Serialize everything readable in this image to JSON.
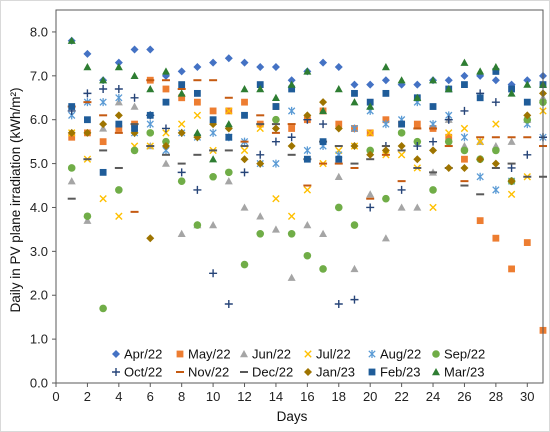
{
  "chart_data": {
    "type": "scatter",
    "xlabel": "Days",
    "ylabel": "Daily  in PV plane irradiation (kWh/m²)",
    "xlim": [
      0,
      31
    ],
    "ylim": [
      0.0,
      8.5
    ],
    "xticks": [
      0,
      2,
      4,
      6,
      8,
      10,
      12,
      14,
      16,
      18,
      20,
      22,
      24,
      26,
      28,
      30
    ],
    "yticks": [
      "0.0",
      "1.0",
      "2.0",
      "3.0",
      "4.0",
      "5.0",
      "6.0",
      "7.0",
      "8.0"
    ],
    "grid": false,
    "legend_position": "bottom-inside",
    "series": [
      {
        "name": "Apr/22",
        "color": "#4472C4",
        "marker": "diamond",
        "values": [
          7.8,
          7.5,
          6.9,
          7.3,
          7.6,
          7.6,
          7.0,
          7.1,
          7.2,
          7.3,
          7.4,
          7.3,
          7.2,
          7.2,
          6.9,
          7.1,
          7.3,
          7.2,
          6.8,
          6.8,
          6.9,
          6.8,
          6.8,
          6.9,
          6.9,
          7.0,
          7.0,
          6.9,
          6.8,
          6.9,
          7.0
        ]
      },
      {
        "name": "May/22",
        "color": "#ED7D31",
        "marker": "square",
        "values": [
          5.6,
          5.7,
          5.5,
          5.8,
          5.9,
          6.9,
          6.7,
          6.5,
          6.4,
          6.2,
          6.2,
          6.4,
          5.9,
          6.3,
          5.8,
          6.0,
          6.2,
          5.9,
          5.8,
          5.7,
          6.0,
          5.9,
          5.9,
          5.8,
          5.6,
          5.1,
          3.7,
          3.3,
          2.6,
          3.2,
          1.2
        ]
      },
      {
        "name": "Jun/22",
        "color": "#A5A5A5",
        "marker": "triangle",
        "values": [
          4.6,
          3.7,
          5.8,
          6.4,
          6.3,
          5.4,
          5.0,
          3.4,
          3.6,
          3.6,
          4.6,
          4.0,
          3.8,
          3.5,
          2.4,
          3.6,
          3.4,
          4.7,
          2.6,
          4.3,
          3.3,
          4.0,
          4.0,
          4.8,
          6.0,
          5.4,
          5.5,
          5.4,
          5.5,
          6.0,
          6.5
        ]
      },
      {
        "name": "Jul/22",
        "color": "#FFC000",
        "marker": "cross",
        "values": [
          5.7,
          5.1,
          4.2,
          3.8,
          5.4,
          5.4,
          5.7,
          5.9,
          6.1,
          5.3,
          6.2,
          5.3,
          5.8,
          4.2,
          3.8,
          4.4,
          5.0,
          5.3,
          5.4,
          5.7,
          5.2,
          5.2,
          4.9,
          4.0,
          5.7,
          5.8,
          5.5,
          5.9,
          4.3,
          4.7,
          6.2
        ]
      },
      {
        "name": "Aug/22",
        "color": "#5B9BD5",
        "marker": "asterisk",
        "values": [
          6.1,
          6.4,
          6.4,
          6.5,
          5.7,
          5.9,
          5.3,
          5.7,
          5.6,
          5.7,
          5.6,
          5.5,
          5.0,
          5.0,
          6.2,
          5.3,
          5.4,
          5.2,
          5.8,
          6.2,
          5.9,
          6.0,
          6.4,
          5.9,
          6.1,
          5.6,
          4.7,
          4.4,
          4.6,
          5.9,
          5.6
        ]
      },
      {
        "name": "Sep/22",
        "color": "#70AD47",
        "marker": "circle",
        "values": [
          4.9,
          3.8,
          1.7,
          4.4,
          5.3,
          5.7,
          5.5,
          4.6,
          3.6,
          4.7,
          4.8,
          2.7,
          3.4,
          6.0,
          3.4,
          2.9,
          2.6,
          4.0,
          3.6,
          5.3,
          4.2,
          5.7,
          5.5,
          4.4,
          5.5,
          5.3,
          5.1,
          5.3,
          4.6,
          6.0,
          6.4
        ]
      },
      {
        "name": "Oct/22",
        "color": "#264478",
        "marker": "plus",
        "values": [
          6.2,
          6.6,
          6.7,
          6.7,
          6.5,
          6.1,
          5.8,
          4.8,
          4.4,
          2.5,
          1.8,
          4.8,
          5.2,
          5.5,
          5.6,
          6.0,
          5.9,
          1.8,
          1.9,
          4.0,
          5.4,
          4.4,
          5.4,
          5.5,
          6.0,
          6.2,
          6.6,
          6.4,
          4.9,
          5.2,
          5.6
        ]
      },
      {
        "name": "Nov/22",
        "color": "#C55A11",
        "marker": "dash",
        "values": [
          6.3,
          6.4,
          6.1,
          5.7,
          3.9,
          6.9,
          6.9,
          6.7,
          6.9,
          6.9,
          6.5,
          5.5,
          6.1,
          5.7,
          5.9,
          4.5,
          5.0,
          5.0,
          4.9,
          4.2,
          5.2,
          4.6,
          5.8,
          5.8,
          5.4,
          4.6,
          5.6,
          5.6,
          5.6,
          5.6,
          5.4
        ]
      },
      {
        "name": "Dec/22",
        "color": "#595959",
        "marker": "dash",
        "values": [
          4.2,
          5.1,
          5.3,
          4.9,
          5.9,
          5.4,
          5.2,
          5.0,
          5.2,
          5.3,
          5.3,
          5.4,
          5.9,
          5.9,
          5.2,
          5.1,
          5.5,
          5.4,
          5.0,
          5.1,
          5.4,
          5.3,
          4.9,
          4.8,
          4.9,
          4.5,
          4.3,
          4.9,
          5.0,
          4.7,
          4.7
        ]
      },
      {
        "name": "Jan/23",
        "color": "#9E7400",
        "marker": "diamond",
        "values": [
          5.7,
          5.7,
          5.9,
          6.1,
          5.7,
          3.3,
          5.4,
          5.7,
          5.6,
          5.9,
          5.8,
          5.1,
          5.0,
          5.8,
          5.4,
          6.1,
          6.4,
          5.8,
          5.4,
          5.2,
          5.3,
          5.4,
          5.1,
          5.3,
          4.9,
          4.9,
          5.1,
          5.0,
          4.6,
          6.1,
          6.6
        ]
      },
      {
        "name": "Feb/23",
        "color": "#1F5C99",
        "marker": "square",
        "values": [
          6.3,
          6.0,
          4.8,
          5.9,
          5.8,
          6.1,
          6.4,
          6.8,
          6.6,
          6.0,
          5.6,
          6.1,
          6.8,
          6.3,
          6.7,
          5.1,
          5.5,
          5.1,
          6.6,
          6.4,
          6.6,
          5.9,
          6.5,
          6.3,
          6.7,
          6.8,
          6.5,
          7.1,
          6.7,
          6.4,
          6.8
        ]
      },
      {
        "name": "Mar/23",
        "color": "#2E7D32",
        "marker": "triangle",
        "values": [
          7.8,
          7.2,
          6.9,
          7.2,
          7.0,
          6.7,
          7.1,
          6.6,
          5.7,
          5.1,
          5.9,
          6.7,
          6.7,
          6.5,
          6.8,
          7.1,
          6.2,
          6.7,
          6.4,
          6.3,
          7.2,
          6.9,
          6.5,
          6.9,
          6.7,
          7.3,
          7.1,
          7.2,
          6.6,
          6.8,
          6.8
        ]
      }
    ]
  }
}
